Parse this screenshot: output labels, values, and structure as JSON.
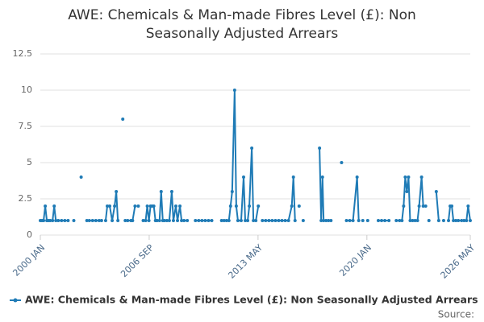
{
  "chart_data": {
    "type": "line",
    "title": "AWE: Chemicals & Man-made Fibres Level (£): Non Seasonally Adjusted Arrears",
    "source": "Source:",
    "x": [
      2000.0,
      2000.1,
      2000.2,
      2000.3,
      2000.4,
      2000.5,
      2000.6,
      2000.75,
      2000.85,
      2000.95,
      2001.1,
      2001.3,
      2001.5,
      2001.7,
      null,
      2002.05,
      null,
      2002.5,
      null,
      2002.85,
      2003.0,
      2003.2,
      2003.4,
      2003.6,
      2003.75,
      null,
      2004.0,
      2004.1,
      2004.25,
      2004.4,
      2004.55,
      2004.65,
      2004.75,
      null,
      2005.05,
      null,
      2005.2,
      2005.35,
      2005.55,
      2005.65,
      2005.8,
      null,
      2006.0,
      null,
      2006.3,
      2006.45,
      2006.55,
      2006.65,
      2006.75,
      2006.85,
      2006.95,
      2007.05,
      2007.15,
      2007.3,
      2007.4,
      2007.5,
      2007.6,
      2007.75,
      2007.9,
      2008.05,
      2008.15,
      2008.3,
      2008.4,
      2008.55,
      2008.65,
      2008.8,
      2009.0,
      null,
      2009.5,
      2009.7,
      2009.9,
      2010.1,
      2010.3,
      2010.5,
      null,
      2011.1,
      2011.25,
      2011.4,
      2011.55,
      2011.65,
      2011.75,
      2011.9,
      2012.0,
      2012.1,
      2012.3,
      2012.45,
      2012.55,
      2012.7,
      2012.8,
      2012.95,
      2013.05,
      2013.2,
      2013.35,
      null,
      2013.6,
      2013.8,
      2014.0,
      2014.2,
      2014.4,
      2014.6,
      2014.8,
      2015.0,
      2015.2,
      2015.4,
      2015.5,
      2015.6,
      null,
      2015.85,
      null,
      2016.1,
      null,
      2017.1,
      2017.2,
      2017.28,
      2017.35,
      2017.5,
      2017.65,
      2017.8,
      null,
      2018.45,
      null,
      2018.75,
      2018.95,
      2019.15,
      2019.4,
      2019.5,
      null,
      2019.75,
      null,
      2020.05,
      null,
      2020.7,
      2020.9,
      2021.1,
      2021.35,
      null,
      2021.8,
      2022.0,
      2022.15,
      2022.25,
      2022.35,
      2022.45,
      2022.55,
      2022.65,
      2022.8,
      2022.95,
      2023.1,
      2023.2,
      2023.35,
      2023.45,
      2023.6,
      null,
      2023.8,
      null,
      2024.25,
      2024.4,
      null,
      2024.7,
      null,
      2025.0,
      2025.1,
      2025.2,
      2025.3,
      2025.45,
      2025.6,
      2025.8,
      2025.95,
      2026.1,
      2026.2,
      2026.33
    ],
    "series": [
      {
        "name": "AWE: Chemicals & Man-made Fibres Level (£): Non Seasonally Adjusted Arrears",
        "color": "#1f7bb6",
        "values": [
          1,
          1,
          1,
          2,
          1,
          1,
          1,
          1,
          2,
          1,
          1,
          1,
          1,
          1,
          null,
          1,
          null,
          4,
          null,
          1,
          1,
          1,
          1,
          1,
          1,
          null,
          1,
          2,
          2,
          1,
          2,
          3,
          1,
          null,
          8,
          null,
          1,
          1,
          1,
          1,
          2,
          null,
          2,
          null,
          1,
          1,
          2,
          1,
          2,
          2,
          2,
          1,
          1,
          1,
          3,
          1,
          1,
          1,
          1,
          3,
          1,
          2,
          1,
          2,
          1,
          1,
          1,
          null,
          1,
          1,
          1,
          1,
          1,
          1,
          null,
          1,
          1,
          1,
          1,
          2,
          3,
          10,
          2,
          1,
          1,
          4,
          1,
          1,
          2,
          6,
          1,
          1,
          2,
          null,
          1,
          1,
          1,
          1,
          1,
          1,
          1,
          1,
          1,
          2,
          4,
          1,
          null,
          2,
          null,
          1,
          null,
          6,
          1,
          4,
          1,
          1,
          1,
          1,
          null,
          5,
          null,
          1,
          1,
          1,
          4,
          1,
          null,
          1,
          null,
          1,
          null,
          1,
          1,
          1,
          1,
          null,
          1,
          1,
          1,
          2,
          4,
          3,
          4,
          1,
          1,
          1,
          1,
          2,
          4,
          2,
          2,
          null,
          1,
          null,
          3,
          1,
          null,
          1,
          null,
          1,
          2,
          2,
          1,
          1,
          1,
          1,
          1,
          1,
          2,
          1
        ]
      }
    ],
    "xlim": [
      2000.0,
      2026.333
    ],
    "xticks": [
      {
        "value": 2000.0,
        "label": "2000 JAN"
      },
      {
        "value": 2006.667,
        "label": "2006 SEP"
      },
      {
        "value": 2013.333,
        "label": "2013 MAY"
      },
      {
        "value": 2020.0,
        "label": "2020 JAN"
      },
      {
        "value": 2026.333,
        "label": "2026 MAY"
      }
    ],
    "ylim": [
      0,
      12.5
    ],
    "yticks": [
      0,
      2.5,
      5,
      7.5,
      10,
      12.5
    ],
    "grid": true
  }
}
